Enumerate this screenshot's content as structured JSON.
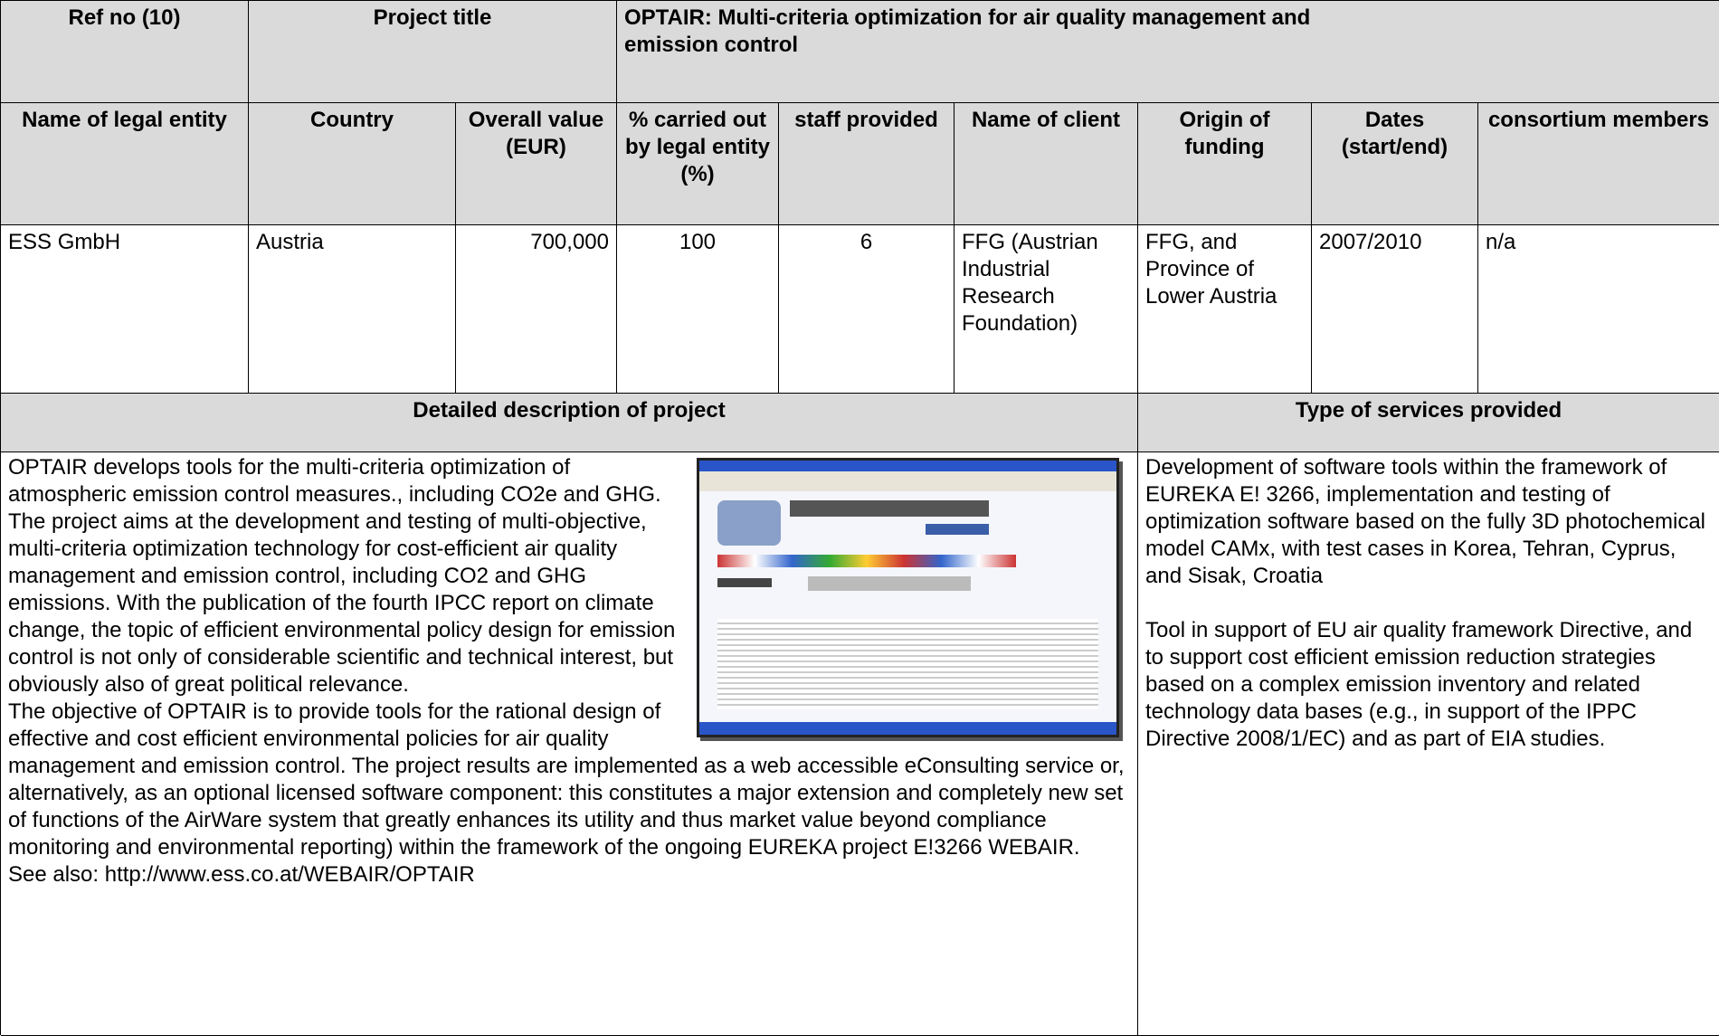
{
  "header": {
    "ref_label": "Ref no (10)",
    "title_label": "Project title",
    "title": "OPTAIR:  Multi-criteria optimization for air quality management and emission control"
  },
  "table": {
    "columns": [
      "Name of legal entity",
      "Country",
      "Overall value (EUR)",
      "% carried out by legal entity (%)",
      "staff provided",
      "Name of client",
      "Origin of funding",
      "Dates (start/end)",
      "consortium members"
    ],
    "row": [
      "ESS GmbH",
      "Austria",
      "700,000",
      "100",
      "6",
      "FFG (Austrian Industrial Research Foundation)",
      "FFG, and Province of Lower Austria",
      "2007/2010",
      "n/a"
    ]
  },
  "description": {
    "heading": "Detailed description of project",
    "paragraphs": [
      "OPTAIR develops tools for the multi-criteria optimization of atmospheric emission control measures., including CO2e and GHG. The project aims at the development and testing of multi-objective, multi-criteria optimization technology for cost-efficient air quality management and emission control, including CO2 and GHG emissions. With the publication of the fourth IPCC report on climate change, the topic of efficient environmental policy design for emission control is not only of considerable scientific and technical interest, but obviously also of great political relevance.",
      "The objective of OPTAIR is to provide tools for the rational design of effective and cost efficient environmental policies for air quality management and emission control. The project results are implemented as a web accessible eConsulting service or, alternatively, as an optional licensed software component: this constitutes a major extension and completely new set of functions of the AirWare system that greatly enhances its utility and thus market value beyond compliance monitoring and environmental reporting) within the framework of the ongoing EUREKA project E!3266 WEBAIR.",
      "See also: http://www.ess.co.at/WEBAIR/OPTAIR"
    ]
  },
  "services": {
    "heading": "Type of services provided",
    "paragraphs": [
      "Development of software tools within the framework of EUREKA E! 3266, implementation and testing of optimization software based on the fully 3D photochemical model CAMx, with test cases in Korea, Tehran, Cyprus, and Sisak, Croatia",
      "Tool in support of EU air quality framework Directive, and to support cost efficient emission reduction strategies based on a complex emission inventory and related technology data bases (e.g., in support of  the IPPC Directive 2008/1/EC) and as part of EIA studies."
    ]
  }
}
